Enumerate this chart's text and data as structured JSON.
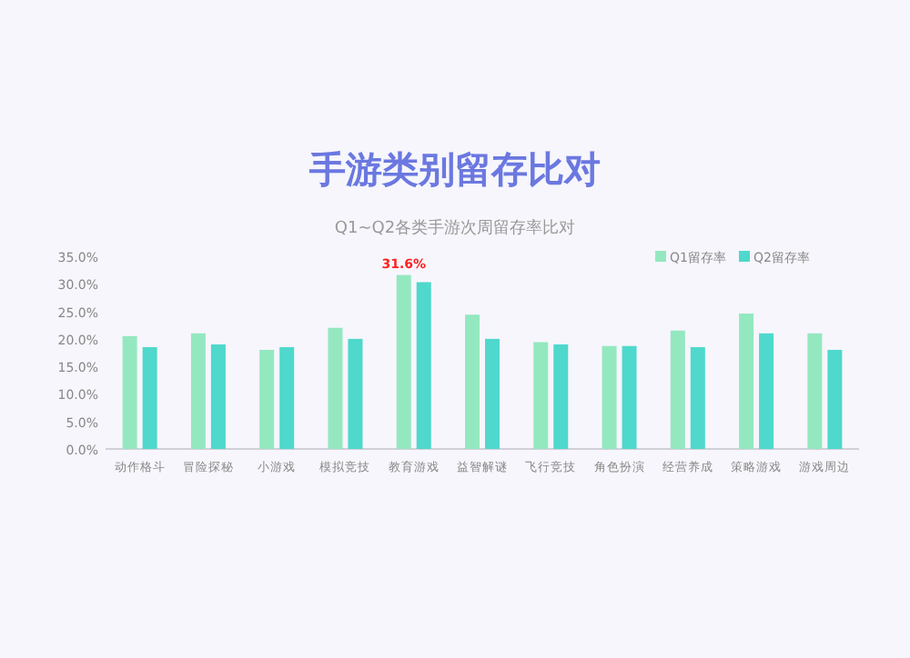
{
  "chart_data": {
    "type": "bar",
    "title": "手游类别留存比对",
    "subtitle": "Q1~Q2各类手游次周留存率比对",
    "categories": [
      "动作格斗",
      "冒险探秘",
      "小游戏",
      "模拟竞技",
      "教育游戏",
      "益智解谜",
      "飞行竞技",
      "角色扮演",
      "经营养成",
      "策略游戏",
      "游戏周边"
    ],
    "series": [
      {
        "name": "Q1留存率",
        "color": "#94e8c0",
        "values": [
          20.5,
          21,
          18,
          22,
          31.6,
          24.4,
          19.4,
          18.7,
          21.5,
          24.6,
          21
        ],
        "value_labels": [
          null,
          null,
          null,
          null,
          "31.6%",
          null,
          null,
          null,
          null,
          null,
          null
        ]
      },
      {
        "name": "Q2留存率",
        "color": "#4fd8cc",
        "values": [
          18.5,
          19,
          18.5,
          20,
          30.3,
          20,
          19,
          18.7,
          18.5,
          21,
          18
        ]
      }
    ],
    "ylim": [
      0,
      35
    ],
    "yticks": [
      {
        "value": 0,
        "label": "0.0%"
      },
      {
        "value": 5,
        "label": "5.0%"
      },
      {
        "value": 10,
        "label": "10.0%"
      },
      {
        "value": 15,
        "label": "15.0%"
      },
      {
        "value": 20,
        "label": "20.0%"
      },
      {
        "value": 25,
        "label": "25.0%"
      },
      {
        "value": 30,
        "label": "30.0%"
      },
      {
        "value": 35,
        "label": "35.0%"
      }
    ],
    "legend": "top right",
    "grid": false
  }
}
